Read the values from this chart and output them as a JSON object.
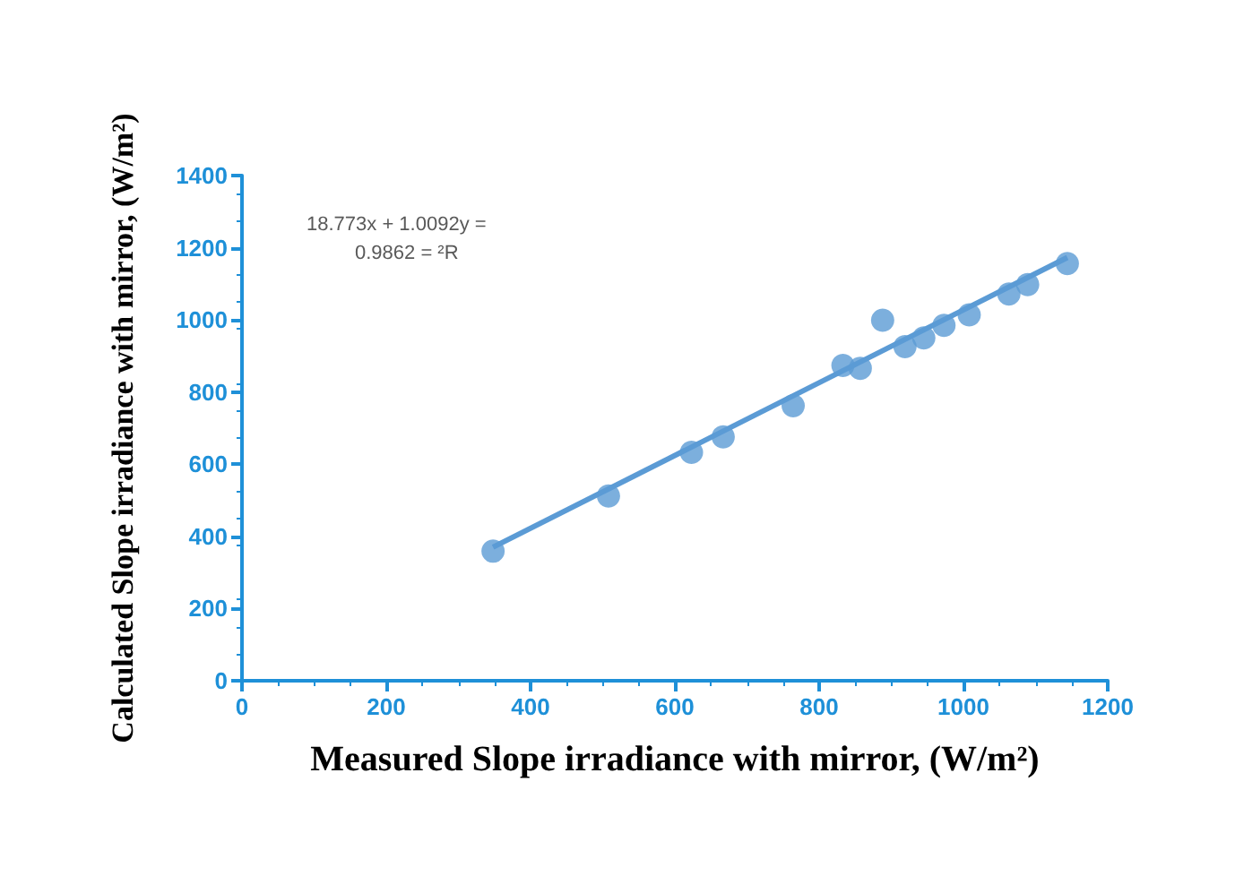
{
  "chart_data": {
    "type": "scatter",
    "xlabel": "Measured Slope irradiance with mirror, (W/m²)",
    "ylabel": "Calculated Slope irradiance with mirror, (W/m²)",
    "annotations": [
      "18.773x + 1.0092y =",
      "0.9862 = ²R"
    ],
    "xlim": [
      0,
      1200
    ],
    "xticks": [
      0,
      200,
      400,
      600,
      800,
      1000,
      1200
    ],
    "ylim": [
      0,
      1400
    ],
    "yticks": [
      0,
      200,
      400,
      600,
      800,
      1000,
      1200,
      1400
    ],
    "grid": false,
    "series": [
      {
        "marker": "circle",
        "color": "#5b9bd5",
        "x": [
          348,
          508,
          623,
          667,
          764,
          833,
          857,
          888,
          919,
          945,
          973,
          1008,
          1063,
          1089,
          1144
        ],
        "values": [
          359,
          512,
          633,
          676,
          762,
          874,
          866,
          999,
          926,
          950,
          985,
          1014,
          1072,
          1098,
          1156
        ]
      },
      {
        "type": "line",
        "color": "#5b9bd5",
        "x": [
          348,
          1144
        ],
        "values": [
          370,
          1173
        ]
      }
    ]
  }
}
